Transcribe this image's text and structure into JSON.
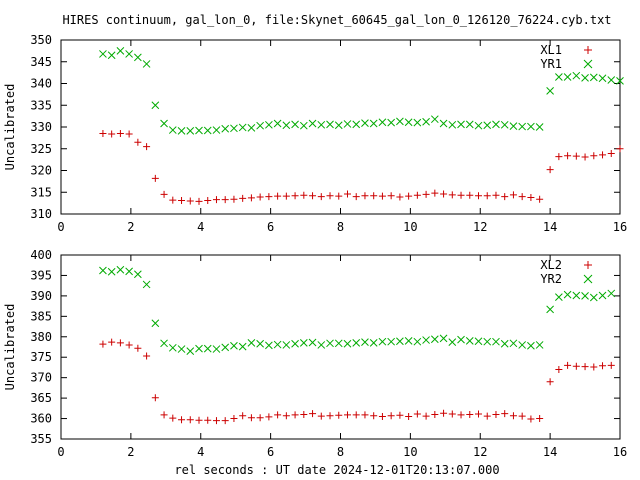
{
  "title": "HIRES continuum, gal_lon_0, file:Skynet_60645_gal_lon_0_126120_76224.cyb.txt",
  "xlabel": "rel seconds : UT date 2024-12-01T20:13:07.000",
  "colors": {
    "series_a": "#cc0000",
    "series_b": "#00aa00"
  },
  "chart_data": [
    {
      "type": "scatter",
      "ylabel": "Uncalibrated",
      "xlim": [
        0,
        16
      ],
      "ylim": [
        310,
        350
      ],
      "xticks": [
        "0",
        "2",
        "4",
        "6",
        "8",
        "10",
        "12",
        "14",
        "16"
      ],
      "yticks": [
        "310",
        "315",
        "320",
        "325",
        "330",
        "335",
        "340",
        "345",
        "350"
      ],
      "legend_position": "top-right",
      "series": [
        {
          "name": "XL1",
          "marker": "plus",
          "color": "#cc0000",
          "x": [
            1.2,
            1.45,
            1.7,
            1.95,
            2.2,
            2.45,
            2.7,
            2.95,
            3.2,
            3.45,
            3.7,
            3.95,
            4.2,
            4.45,
            4.7,
            4.95,
            5.2,
            5.45,
            5.7,
            5.95,
            6.2,
            6.45,
            6.7,
            6.95,
            7.2,
            7.45,
            7.7,
            7.95,
            8.2,
            8.45,
            8.7,
            8.95,
            9.2,
            9.45,
            9.7,
            9.95,
            10.2,
            10.45,
            10.7,
            10.95,
            11.2,
            11.45,
            11.7,
            11.95,
            12.2,
            12.45,
            12.7,
            12.95,
            13.2,
            13.45,
            13.7,
            14.0,
            14.25,
            14.5,
            14.75,
            15.0,
            15.25,
            15.5,
            15.75,
            16.0
          ],
          "y": [
            328.5,
            328.4,
            328.5,
            328.4,
            326.5,
            325.5,
            318.2,
            314.5,
            313.2,
            313.1,
            313.0,
            312.9,
            313.1,
            313.3,
            313.3,
            313.4,
            313.6,
            313.7,
            313.9,
            314.0,
            314.1,
            314.1,
            314.2,
            314.3,
            314.2,
            314.0,
            314.2,
            314.1,
            314.6,
            314.0,
            314.2,
            314.2,
            314.1,
            314.2,
            313.9,
            314.1,
            314.3,
            314.5,
            314.8,
            314.6,
            314.4,
            314.3,
            314.3,
            314.2,
            314.2,
            314.3,
            314.0,
            314.4,
            314.0,
            313.8,
            313.4,
            320.2,
            323.2,
            323.4,
            323.3,
            323.1,
            323.4,
            323.6,
            323.9,
            325.0
          ]
        },
        {
          "name": "YR1",
          "marker": "cross",
          "color": "#00aa00",
          "x": [
            1.2,
            1.45,
            1.7,
            1.95,
            2.2,
            2.45,
            2.7,
            2.95,
            3.2,
            3.45,
            3.7,
            3.95,
            4.2,
            4.45,
            4.7,
            4.95,
            5.2,
            5.45,
            5.7,
            5.95,
            6.2,
            6.45,
            6.7,
            6.95,
            7.2,
            7.45,
            7.7,
            7.95,
            8.2,
            8.45,
            8.7,
            8.95,
            9.2,
            9.45,
            9.7,
            9.95,
            10.2,
            10.45,
            10.7,
            10.95,
            11.2,
            11.45,
            11.7,
            11.95,
            12.2,
            12.45,
            12.7,
            12.95,
            13.2,
            13.45,
            13.7,
            14.0,
            14.25,
            14.5,
            14.75,
            15.0,
            15.25,
            15.5,
            15.75,
            16.0
          ],
          "y": [
            346.8,
            346.5,
            347.5,
            346.8,
            346.0,
            344.5,
            335.0,
            330.8,
            329.3,
            329.1,
            329.1,
            329.2,
            329.2,
            329.3,
            329.6,
            329.7,
            329.9,
            329.8,
            330.3,
            330.5,
            330.8,
            330.4,
            330.6,
            330.3,
            330.8,
            330.5,
            330.6,
            330.4,
            330.7,
            330.6,
            330.9,
            330.8,
            331.1,
            331.0,
            331.3,
            331.1,
            331.0,
            331.2,
            331.8,
            330.8,
            330.5,
            330.6,
            330.6,
            330.3,
            330.4,
            330.6,
            330.5,
            330.2,
            330.1,
            330.1,
            330.0,
            338.3,
            341.5,
            341.5,
            341.8,
            341.3,
            341.4,
            341.2,
            340.8,
            340.6
          ]
        }
      ]
    },
    {
      "type": "scatter",
      "ylabel": "Uncalibrated",
      "xlim": [
        0,
        16
      ],
      "ylim": [
        355,
        400
      ],
      "xticks": [
        "0",
        "2",
        "4",
        "6",
        "8",
        "10",
        "12",
        "14",
        "16"
      ],
      "yticks": [
        "355",
        "360",
        "365",
        "370",
        "375",
        "380",
        "385",
        "390",
        "395",
        "400"
      ],
      "legend_position": "top-right",
      "series": [
        {
          "name": "XL2",
          "marker": "plus",
          "color": "#cc0000",
          "x": [
            1.2,
            1.45,
            1.7,
            1.95,
            2.2,
            2.45,
            2.7,
            2.95,
            3.2,
            3.45,
            3.7,
            3.95,
            4.2,
            4.45,
            4.7,
            4.95,
            5.2,
            5.45,
            5.7,
            5.95,
            6.2,
            6.45,
            6.7,
            6.95,
            7.2,
            7.45,
            7.7,
            7.95,
            8.2,
            8.45,
            8.7,
            8.95,
            9.2,
            9.45,
            9.7,
            9.95,
            10.2,
            10.45,
            10.7,
            10.95,
            11.2,
            11.45,
            11.7,
            11.95,
            12.2,
            12.45,
            12.7,
            12.95,
            13.2,
            13.45,
            13.7,
            14.0,
            14.25,
            14.5,
            14.75,
            15.0,
            15.25,
            15.5,
            15.75
          ],
          "y": [
            378.2,
            378.7,
            378.5,
            378.0,
            377.2,
            375.3,
            365.1,
            360.9,
            360.1,
            359.7,
            359.7,
            359.6,
            359.6,
            359.5,
            359.5,
            360.0,
            360.7,
            360.2,
            360.2,
            360.4,
            360.9,
            360.7,
            360.9,
            361.0,
            361.2,
            360.6,
            360.7,
            360.8,
            360.9,
            360.9,
            360.9,
            360.7,
            360.5,
            360.7,
            360.8,
            360.5,
            361.1,
            360.6,
            361.0,
            361.3,
            361.1,
            360.9,
            361.0,
            361.1,
            360.6,
            361.0,
            361.2,
            360.7,
            360.6,
            359.9,
            360.0,
            369.0,
            372.0,
            373.0,
            372.8,
            372.7,
            372.6,
            372.9,
            373.0
          ]
        },
        {
          "name": "YR2",
          "marker": "cross",
          "color": "#00aa00",
          "x": [
            1.2,
            1.45,
            1.7,
            1.95,
            2.2,
            2.45,
            2.7,
            2.95,
            3.2,
            3.45,
            3.7,
            3.95,
            4.2,
            4.45,
            4.7,
            4.95,
            5.2,
            5.45,
            5.7,
            5.95,
            6.2,
            6.45,
            6.7,
            6.95,
            7.2,
            7.45,
            7.7,
            7.95,
            8.2,
            8.45,
            8.7,
            8.95,
            9.2,
            9.45,
            9.7,
            9.95,
            10.2,
            10.45,
            10.7,
            10.95,
            11.2,
            11.45,
            11.7,
            11.95,
            12.2,
            12.45,
            12.7,
            12.95,
            13.2,
            13.45,
            13.7,
            14.0,
            14.25,
            14.5,
            14.75,
            15.0,
            15.25,
            15.5,
            15.75
          ],
          "y": [
            396.2,
            395.9,
            396.4,
            396.0,
            395.3,
            392.8,
            383.3,
            378.4,
            377.3,
            377.0,
            376.5,
            377.1,
            377.1,
            377.0,
            377.4,
            377.8,
            377.6,
            378.5,
            378.3,
            377.9,
            378.1,
            378.0,
            378.3,
            378.5,
            378.6,
            378.0,
            378.4,
            378.4,
            378.3,
            378.5,
            378.7,
            378.5,
            378.8,
            378.8,
            378.9,
            379.0,
            378.8,
            379.2,
            379.4,
            379.6,
            378.7,
            379.3,
            379.0,
            378.9,
            378.8,
            378.8,
            378.3,
            378.4,
            378.0,
            377.8,
            378.0,
            386.7,
            389.7,
            390.3,
            390.1,
            390.0,
            389.6,
            390.1,
            390.6
          ]
        }
      ]
    }
  ]
}
